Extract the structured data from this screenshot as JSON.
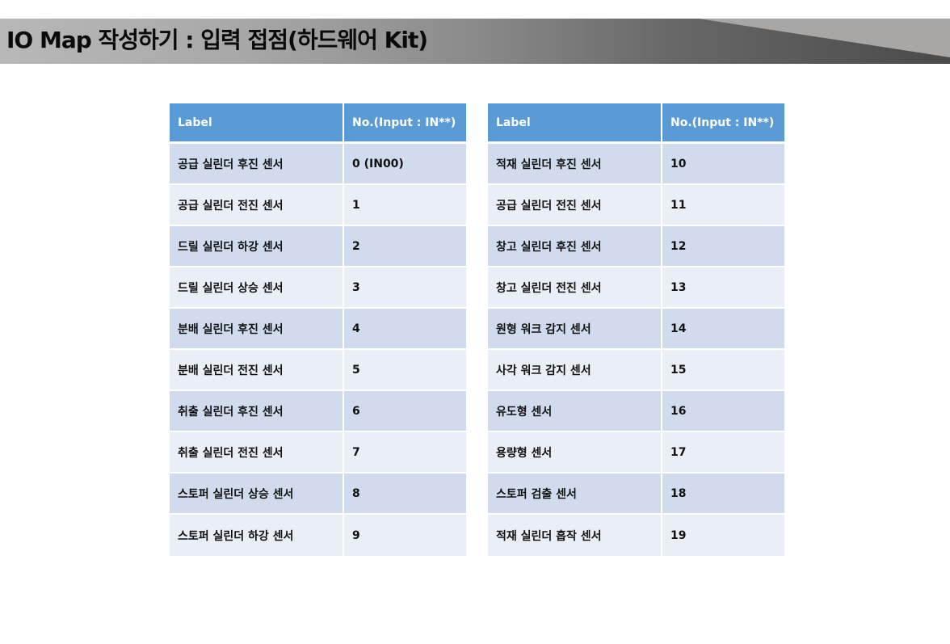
{
  "title": "IO Map 작성하기 : 입력 접점(하드웨어 Kit)",
  "colors": {
    "header": "#5b9bd5",
    "row_odd": "#d0dcee",
    "row_even": "#e9eef7"
  },
  "tables": [
    {
      "headers": [
        "Label",
        "No.(Input : IN**)"
      ],
      "rows": [
        [
          "공급 실린더 후진 센서",
          "0 (IN00)"
        ],
        [
          "공급 실린더 전진 센서",
          "1"
        ],
        [
          "드릴 실린더 하강 센서",
          "2"
        ],
        [
          "드릴 실린더 상승 센서",
          "3"
        ],
        [
          "분배 실린더 후진 센서",
          "4"
        ],
        [
          "분배 실린더 전진 센서",
          "5"
        ],
        [
          "취출 실린더 후진 센서",
          "6"
        ],
        [
          "취출 실린더 전진 센서",
          "7"
        ],
        [
          "스토퍼 실린더 상승 센서",
          "8"
        ],
        [
          "스토퍼 실린더 하강 센서",
          "9"
        ]
      ]
    },
    {
      "headers": [
        "Label",
        "No.(Input : IN**)"
      ],
      "rows": [
        [
          "적재 실린더 후진 센서",
          "10"
        ],
        [
          "공급 실린더 전진 센서",
          "11"
        ],
        [
          "창고 실린더 후진 센서",
          "12"
        ],
        [
          "창고 실린더 전진 센서",
          "13"
        ],
        [
          "원형 워크 감지 센서",
          "14"
        ],
        [
          "사각 워크 감지 센서",
          "15"
        ],
        [
          "유도형 센서",
          "16"
        ],
        [
          "용량형 센서",
          "17"
        ],
        [
          "스토퍼 검출 센서",
          "18"
        ],
        [
          "적재 실린더 흡작 센서",
          "19"
        ]
      ]
    }
  ]
}
